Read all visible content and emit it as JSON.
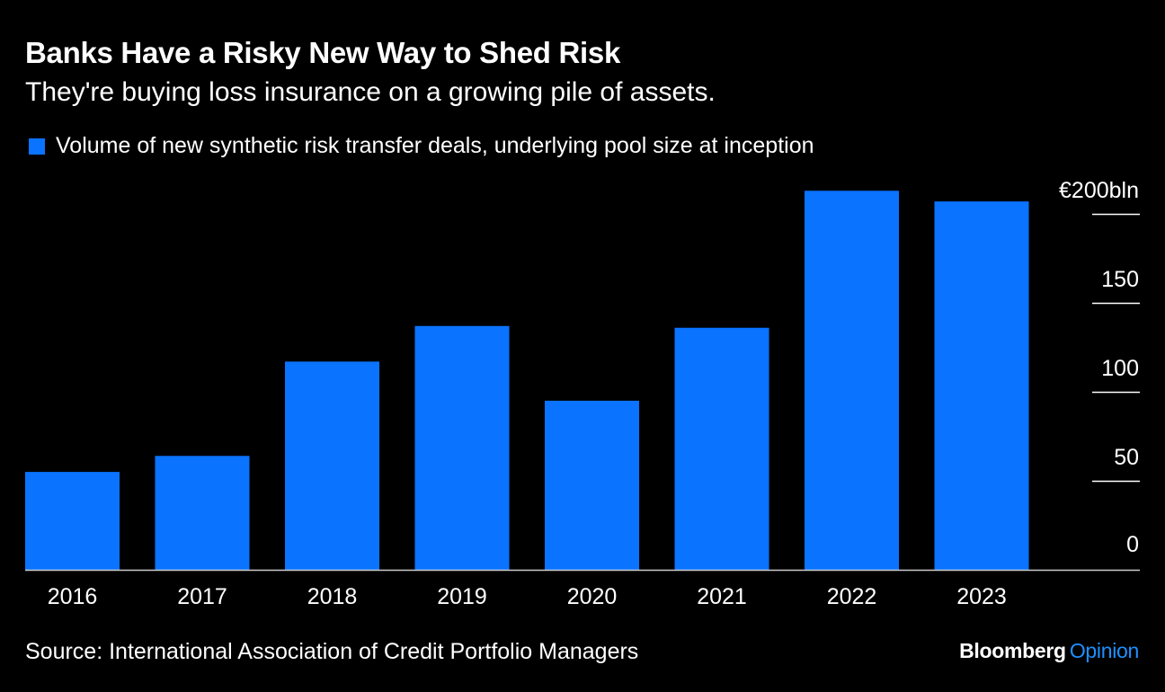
{
  "header": {
    "title": "Banks Have a Risky New Way to Shed Risk",
    "subtitle": "They're buying loss insurance on a growing pile of assets."
  },
  "legend": {
    "label": "Volume of new synthetic risk transfer deals, underlying pool size at inception"
  },
  "footer": {
    "source": "Source: International Association of Credit Portfolio Managers",
    "brand_main": "Bloomberg",
    "brand_accent": "Opinion"
  },
  "colors": {
    "bar": "#0a73ff",
    "background": "#000000",
    "text": "#ffffff",
    "gridline": "#ffffff",
    "brand_accent": "#1e90ff"
  },
  "chart_data": {
    "type": "bar",
    "categories": [
      "2016",
      "2017",
      "2018",
      "2019",
      "2020",
      "2021",
      "2022",
      "2023"
    ],
    "series": [
      {
        "name": "Volume of new synthetic risk transfer deals, underlying pool size at inception",
        "values": [
          55,
          64,
          117,
          137,
          95,
          136,
          213,
          207
        ]
      }
    ],
    "ylim": [
      0,
      200
    ],
    "yticks": [
      0,
      50,
      100,
      150,
      200
    ],
    "ytick_labels": [
      "0",
      "50",
      "100",
      "150",
      "€200bln"
    ],
    "y_axis_position": "right",
    "grid": false
  }
}
